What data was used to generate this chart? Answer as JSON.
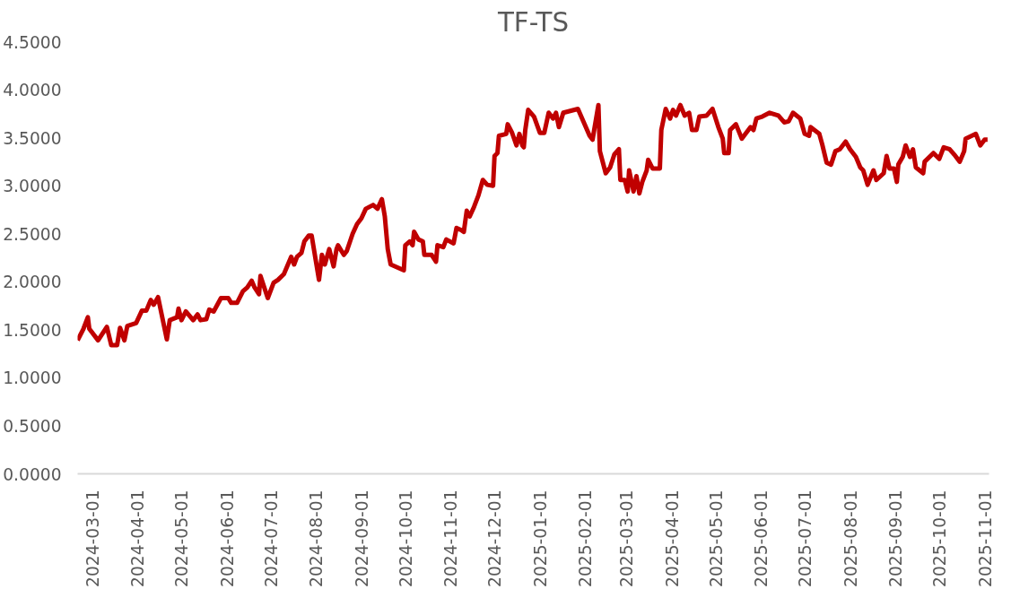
{
  "chart_data": {
    "type": "line",
    "title": "TF-TS",
    "x": [
      "2024-02-20",
      "2024-02-24",
      "2024-02-27",
      "2024-02-28",
      "2024-03-05",
      "2024-03-11",
      "2024-03-14",
      "2024-03-18",
      "2024-03-20",
      "2024-03-23",
      "2024-03-25",
      "2024-03-31",
      "2024-04-04",
      "2024-04-07",
      "2024-04-10",
      "2024-04-12",
      "2024-04-15",
      "2024-04-21",
      "2024-04-23",
      "2024-04-28",
      "2024-04-29",
      "2024-05-01",
      "2024-05-04",
      "2024-05-09",
      "2024-05-12",
      "2024-05-14",
      "2024-05-18",
      "2024-05-20",
      "2024-05-23",
      "2024-05-28",
      "2024-06-02",
      "2024-06-04",
      "2024-06-08",
      "2024-06-12",
      "2024-06-15",
      "2024-06-18",
      "2024-06-20",
      "2024-06-23",
      "2024-06-24",
      "2024-06-29",
      "2024-07-03",
      "2024-07-06",
      "2024-07-10",
      "2024-07-15",
      "2024-07-17",
      "2024-07-19",
      "2024-07-22",
      "2024-07-24",
      "2024-07-27",
      "2024-07-29",
      "2024-08-03",
      "2024-08-05",
      "2024-08-07",
      "2024-08-10",
      "2024-08-13",
      "2024-08-15",
      "2024-08-16",
      "2024-08-20",
      "2024-08-22",
      "2024-08-26",
      "2024-08-29",
      "2024-09-01",
      "2024-09-04",
      "2024-09-09",
      "2024-09-12",
      "2024-09-15",
      "2024-09-17",
      "2024-09-19",
      "2024-09-21",
      "2024-09-30",
      "2024-10-01",
      "2024-10-04",
      "2024-10-06",
      "2024-10-07",
      "2024-10-10",
      "2024-10-13",
      "2024-10-14",
      "2024-10-19",
      "2024-10-22",
      "2024-10-23",
      "2024-10-27",
      "2024-10-29",
      "2024-11-03",
      "2024-11-05",
      "2024-11-08",
      "2024-11-10",
      "2024-11-12",
      "2024-11-14",
      "2024-11-17",
      "2024-11-20",
      "2024-11-23",
      "2024-11-26",
      "2024-11-30",
      "2024-12-01",
      "2024-12-03",
      "2024-12-04",
      "2024-12-09",
      "2024-12-10",
      "2024-12-13",
      "2024-12-16",
      "2024-12-18",
      "2024-12-20",
      "2024-12-21",
      "2024-12-22",
      "2024-12-24",
      "2024-12-28",
      "2025-01-01",
      "2025-01-04",
      "2025-01-07",
      "2025-01-10",
      "2025-01-12",
      "2025-01-14",
      "2025-01-17",
      "2025-01-27",
      "2025-01-31",
      "2025-02-04",
      "2025-02-06",
      "2025-02-10",
      "2025-02-11",
      "2025-02-15",
      "2025-02-18",
      "2025-02-21",
      "2025-02-24",
      "2025-02-25",
      "2025-02-28",
      "2025-03-02",
      "2025-03-03",
      "2025-03-06",
      "2025-03-08",
      "2025-03-10",
      "2025-03-12",
      "2025-03-15",
      "2025-03-16",
      "2025-03-19",
      "2025-03-24",
      "2025-03-25",
      "2025-03-28",
      "2025-03-31",
      "2025-04-02",
      "2025-04-04",
      "2025-04-07",
      "2025-04-10",
      "2025-04-13",
      "2025-04-15",
      "2025-04-18",
      "2025-04-20",
      "2025-04-25",
      "2025-04-29",
      "2025-05-03",
      "2025-05-06",
      "2025-05-07",
      "2025-05-10",
      "2025-05-11",
      "2025-05-15",
      "2025-05-19",
      "2025-05-22",
      "2025-05-25",
      "2025-05-27",
      "2025-05-29",
      "2025-06-02",
      "2025-06-07",
      "2025-06-13",
      "2025-06-17",
      "2025-06-20",
      "2025-06-23",
      "2025-06-28",
      "2025-07-01",
      "2025-07-04",
      "2025-07-05",
      "2025-07-11",
      "2025-07-13",
      "2025-07-16",
      "2025-07-19",
      "2025-07-22",
      "2025-07-25",
      "2025-07-29",
      "2025-08-01",
      "2025-08-05",
      "2025-08-08",
      "2025-08-10",
      "2025-08-13",
      "2025-08-17",
      "2025-08-19",
      "2025-08-24",
      "2025-08-26",
      "2025-08-28",
      "2025-08-31",
      "2025-09-02",
      "2025-09-03",
      "2025-09-06",
      "2025-09-08",
      "2025-09-11",
      "2025-09-13",
      "2025-09-15",
      "2025-09-20",
      "2025-09-21",
      "2025-09-27",
      "2025-10-01",
      "2025-10-04",
      "2025-10-08",
      "2025-10-12",
      "2025-10-15",
      "2025-10-18",
      "2025-10-19",
      "2025-10-26",
      "2025-10-29",
      "2025-11-01",
      "2025-11-03"
    ],
    "series": [
      {
        "color": "#c00000",
        "values": [
          1.39,
          1.51,
          1.63,
          1.51,
          1.39,
          1.53,
          1.34,
          1.34,
          1.52,
          1.39,
          1.54,
          1.57,
          1.7,
          1.7,
          1.81,
          1.76,
          1.84,
          1.4,
          1.6,
          1.63,
          1.72,
          1.6,
          1.69,
          1.6,
          1.66,
          1.6,
          1.61,
          1.71,
          1.69,
          1.83,
          1.83,
          1.78,
          1.78,
          1.9,
          1.94,
          2.01,
          1.94,
          1.87,
          2.06,
          1.83,
          1.99,
          2.02,
          2.08,
          2.26,
          2.18,
          2.26,
          2.3,
          2.42,
          2.48,
          2.48,
          2.02,
          2.28,
          2.18,
          2.34,
          2.16,
          2.34,
          2.38,
          2.28,
          2.32,
          2.5,
          2.6,
          2.66,
          2.76,
          2.8,
          2.76,
          2.86,
          2.68,
          2.34,
          2.18,
          2.12,
          2.38,
          2.42,
          2.38,
          2.52,
          2.44,
          2.42,
          2.28,
          2.28,
          2.21,
          2.38,
          2.36,
          2.44,
          2.4,
          2.56,
          2.54,
          2.52,
          2.74,
          2.68,
          2.78,
          2.9,
          3.06,
          3.01,
          3.0,
          3.31,
          3.34,
          3.52,
          3.54,
          3.64,
          3.55,
          3.42,
          3.54,
          3.42,
          3.4,
          3.58,
          3.79,
          3.72,
          3.55,
          3.55,
          3.76,
          3.7,
          3.76,
          3.61,
          3.76,
          3.8,
          3.66,
          3.52,
          3.48,
          3.84,
          3.36,
          3.13,
          3.19,
          3.33,
          3.38,
          3.06,
          3.06,
          2.94,
          3.16,
          2.94,
          3.1,
          2.92,
          3.04,
          3.16,
          3.27,
          3.18,
          3.18,
          3.58,
          3.8,
          3.7,
          3.79,
          3.73,
          3.84,
          3.73,
          3.76,
          3.58,
          3.58,
          3.72,
          3.73,
          3.8,
          3.61,
          3.49,
          3.34,
          3.34,
          3.58,
          3.64,
          3.49,
          3.55,
          3.61,
          3.58,
          3.7,
          3.72,
          3.76,
          3.73,
          3.66,
          3.67,
          3.76,
          3.7,
          3.54,
          3.52,
          3.61,
          3.54,
          3.43,
          3.24,
          3.22,
          3.36,
          3.38,
          3.46,
          3.38,
          3.3,
          3.19,
          3.16,
          3.01,
          3.16,
          3.06,
          3.13,
          3.31,
          3.18,
          3.18,
          3.04,
          3.22,
          3.3,
          3.42,
          3.3,
          3.38,
          3.19,
          3.13,
          3.25,
          3.34,
          3.28,
          3.4,
          3.38,
          3.31,
          3.25,
          3.36,
          3.49,
          3.54,
          3.42,
          3.48,
          3.48
        ]
      }
    ],
    "xlim": [
      "2024-02-20",
      "2025-11-04"
    ],
    "xticks": [
      "2024-03-01",
      "2024-04-01",
      "2024-05-01",
      "2024-06-01",
      "2024-07-01",
      "2024-08-01",
      "2024-09-01",
      "2024-10-01",
      "2024-11-01",
      "2024-12-01",
      "2025-01-01",
      "2025-02-01",
      "2025-03-01",
      "2025-04-01",
      "2025-05-01",
      "2025-06-01",
      "2025-07-01",
      "2025-08-01",
      "2025-09-01",
      "2025-10-01",
      "2025-11-01"
    ],
    "ylim": [
      0,
      4.5
    ],
    "yticks": [
      {
        "value": 0,
        "label": "0.0000"
      },
      {
        "value": 0.5,
        "label": "0.5000"
      },
      {
        "value": 1,
        "label": "1.0000"
      },
      {
        "value": 1.5,
        "label": "1.5000"
      },
      {
        "value": 2,
        "label": "2.0000"
      },
      {
        "value": 2.5,
        "label": "2.5000"
      },
      {
        "value": 3,
        "label": "3.0000"
      },
      {
        "value": 3.5,
        "label": "3.5000"
      },
      {
        "value": 4,
        "label": "4.0000"
      },
      {
        "value": 4.5,
        "label": "4.5000"
      }
    ],
    "grid": false,
    "marker": "none",
    "line_style": "solid"
  }
}
